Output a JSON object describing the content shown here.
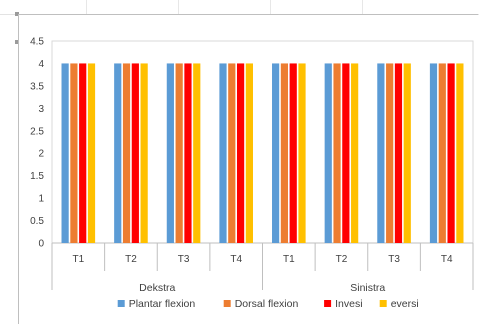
{
  "chart_data": {
    "type": "bar",
    "groups": [
      {
        "label": "Dekstra",
        "categories": [
          "T1",
          "T2",
          "T3",
          "T4"
        ]
      },
      {
        "label": "Sinistra",
        "categories": [
          "T1",
          "T2",
          "T3",
          "T4"
        ]
      }
    ],
    "categories": [
      "T1",
      "T2",
      "T3",
      "T4",
      "T1",
      "T2",
      "T3",
      "T4"
    ],
    "series": [
      {
        "name": "Plantar flexion",
        "color": "#5b9bd5",
        "values": [
          4,
          4,
          4,
          4,
          4,
          4,
          4,
          4
        ]
      },
      {
        "name": "Dorsal flexion",
        "color": "#ed7d31",
        "values": [
          4,
          4,
          4,
          4,
          4,
          4,
          4,
          4
        ]
      },
      {
        "name": "Invesi",
        "color": "#ff0000",
        "values": [
          4,
          4,
          4,
          4,
          4,
          4,
          4,
          4
        ]
      },
      {
        "name": "eversi",
        "color": "#ffc000",
        "values": [
          4,
          4,
          4,
          4,
          4,
          4,
          4,
          4
        ]
      }
    ],
    "y_ticks": [
      "0",
      "0.5",
      "1",
      "1.5",
      "2",
      "2.5",
      "3",
      "3.5",
      "4",
      "4.5"
    ],
    "ylim": [
      0,
      4.5
    ],
    "grid": false,
    "legend_position": "bottom",
    "title": "",
    "xlabel": "",
    "ylabel": ""
  }
}
